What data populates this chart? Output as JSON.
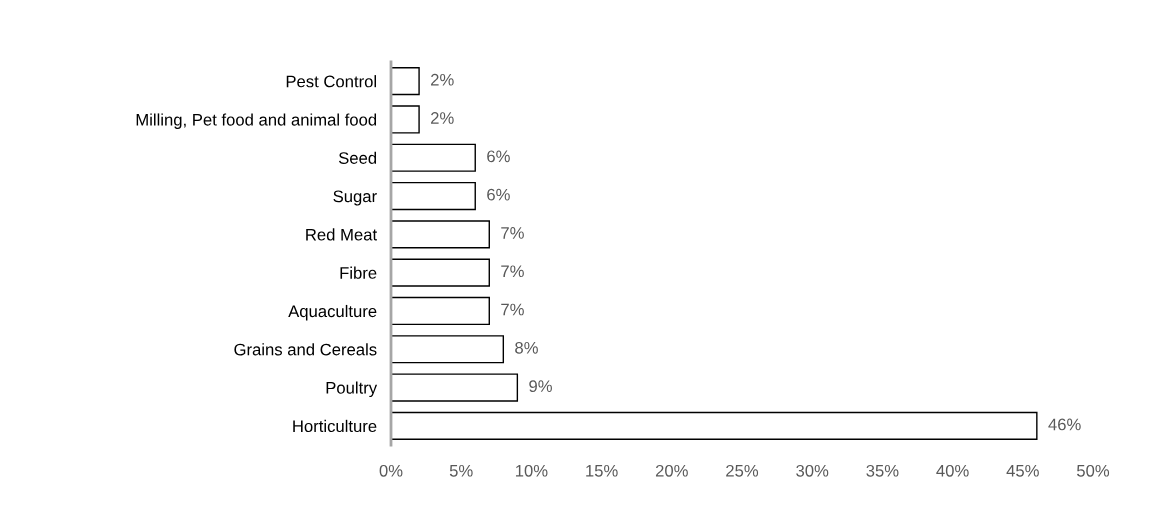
{
  "chart_data": {
    "type": "bar",
    "orientation": "horizontal",
    "categories": [
      "Pest Control",
      "Milling, Pet food and animal food",
      "Seed",
      "Sugar",
      "Red Meat",
      "Fibre",
      "Aquaculture",
      "Grains and Cereals",
      "Poultry",
      "Horticulture"
    ],
    "values": [
      2,
      2,
      6,
      6,
      7,
      7,
      7,
      8,
      9,
      46
    ],
    "value_labels": [
      "2%",
      "2%",
      "6%",
      "6%",
      "7%",
      "7%",
      "7%",
      "8%",
      "9%",
      "46%"
    ],
    "color": "#ffffff",
    "xlim": [
      0,
      50
    ],
    "xticks": [
      {
        "value": 0,
        "label": "0%"
      },
      {
        "value": 5,
        "label": "5%"
      },
      {
        "value": 10,
        "label": "10%"
      },
      {
        "value": 15,
        "label": "15%"
      },
      {
        "value": 20,
        "label": "20%"
      },
      {
        "value": 25,
        "label": "25%"
      },
      {
        "value": 30,
        "label": "30%"
      },
      {
        "value": 35,
        "label": "35%"
      },
      {
        "value": 40,
        "label": "40%"
      },
      {
        "value": 45,
        "label": "45%"
      },
      {
        "value": 50,
        "label": "50%"
      }
    ],
    "grid": false,
    "legend": false
  }
}
